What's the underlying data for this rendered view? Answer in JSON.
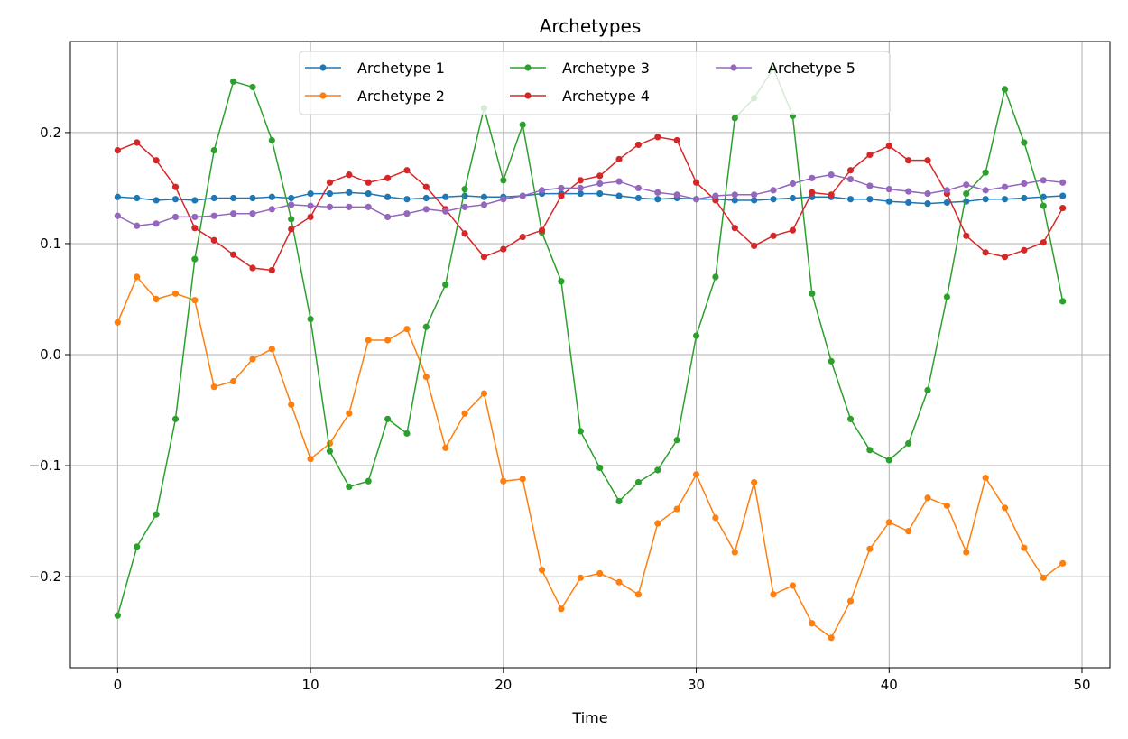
{
  "chart_data": {
    "type": "line",
    "title": "Archetypes",
    "xlabel": "Time",
    "ylabel": "",
    "xlim": [
      -2.45,
      51.45
    ],
    "ylim": [
      -0.282,
      0.282
    ],
    "xticks": [
      0,
      10,
      20,
      30,
      40,
      50
    ],
    "xtick_labels": [
      "0",
      "10",
      "20",
      "30",
      "40",
      "50"
    ],
    "yticks": [
      -0.2,
      -0.1,
      0.0,
      0.1,
      0.2
    ],
    "ytick_labels": [
      "−0.2",
      "−0.1",
      "0.0",
      "0.1",
      "0.2"
    ],
    "grid": true,
    "legend_position": "top-center",
    "legend_columns": 3,
    "x": [
      0,
      1,
      2,
      3,
      4,
      5,
      6,
      7,
      8,
      9,
      10,
      11,
      12,
      13,
      14,
      15,
      16,
      17,
      18,
      19,
      20,
      21,
      22,
      23,
      24,
      25,
      26,
      27,
      28,
      29,
      30,
      31,
      32,
      33,
      34,
      35,
      36,
      37,
      38,
      39,
      40,
      41,
      42,
      43,
      44,
      45,
      46,
      47,
      48,
      49
    ],
    "series": [
      {
        "name": "Archetype 1",
        "color": "#1f77b4",
        "values": [
          0.142,
          0.141,
          0.139,
          0.14,
          0.139,
          0.141,
          0.141,
          0.141,
          0.142,
          0.141,
          0.145,
          0.145,
          0.146,
          0.145,
          0.142,
          0.14,
          0.141,
          0.142,
          0.143,
          0.142,
          0.142,
          0.143,
          0.145,
          0.145,
          0.145,
          0.145,
          0.143,
          0.141,
          0.14,
          0.141,
          0.14,
          0.14,
          0.139,
          0.139,
          0.14,
          0.141,
          0.142,
          0.142,
          0.14,
          0.14,
          0.138,
          0.137,
          0.136,
          0.137,
          0.138,
          0.14,
          0.14,
          0.141,
          0.142,
          0.143
        ]
      },
      {
        "name": "Archetype 2",
        "color": "#ff7f0e",
        "values": [
          0.029,
          0.07,
          0.05,
          0.055,
          0.049,
          -0.029,
          -0.024,
          -0.004,
          0.005,
          -0.045,
          -0.094,
          -0.08,
          -0.053,
          0.013,
          0.013,
          0.023,
          -0.02,
          -0.084,
          -0.053,
          -0.035,
          -0.114,
          -0.112,
          -0.194,
          -0.229,
          -0.201,
          -0.197,
          -0.205,
          -0.216,
          -0.152,
          -0.139,
          -0.108,
          -0.147,
          -0.178,
          -0.115,
          -0.216,
          -0.208,
          -0.242,
          -0.255,
          -0.222,
          -0.175,
          -0.151,
          -0.159,
          -0.129,
          -0.136,
          -0.178,
          -0.111,
          -0.138,
          -0.174,
          -0.201,
          -0.188
        ]
      },
      {
        "name": "Archetype 3",
        "color": "#2ca02c",
        "values": [
          -0.235,
          -0.173,
          -0.144,
          -0.058,
          0.086,
          0.184,
          0.246,
          0.241,
          0.193,
          0.122,
          0.032,
          -0.087,
          -0.119,
          -0.114,
          -0.058,
          -0.071,
          0.025,
          0.063,
          0.149,
          0.222,
          0.157,
          0.207,
          0.11,
          0.066,
          -0.069,
          -0.102,
          -0.132,
          -0.115,
          -0.104,
          -0.077,
          0.017,
          0.07,
          0.213,
          0.231,
          0.258,
          0.215,
          0.055,
          -0.006,
          -0.058,
          -0.086,
          -0.095,
          -0.08,
          -0.032,
          0.052,
          0.145,
          0.164,
          0.239,
          0.191,
          0.134,
          0.048
        ]
      },
      {
        "name": "Archetype 4",
        "color": "#d62728",
        "values": [
          0.184,
          0.191,
          0.175,
          0.151,
          0.114,
          0.103,
          0.09,
          0.078,
          0.076,
          0.113,
          0.124,
          0.155,
          0.162,
          0.155,
          0.159,
          0.166,
          0.151,
          0.131,
          0.109,
          0.088,
          0.095,
          0.106,
          0.112,
          0.143,
          0.157,
          0.161,
          0.176,
          0.189,
          0.196,
          0.193,
          0.155,
          0.139,
          0.114,
          0.098,
          0.107,
          0.112,
          0.146,
          0.144,
          0.166,
          0.18,
          0.188,
          0.175,
          0.175,
          0.145,
          0.107,
          0.092,
          0.088,
          0.094,
          0.101,
          0.132
        ]
      },
      {
        "name": "Archetype 5",
        "color": "#9467bd",
        "values": [
          0.125,
          0.116,
          0.118,
          0.124,
          0.124,
          0.125,
          0.127,
          0.127,
          0.131,
          0.135,
          0.134,
          0.133,
          0.133,
          0.133,
          0.124,
          0.127,
          0.131,
          0.129,
          0.133,
          0.135,
          0.14,
          0.143,
          0.148,
          0.15,
          0.15,
          0.154,
          0.156,
          0.15,
          0.146,
          0.144,
          0.14,
          0.143,
          0.144,
          0.144,
          0.148,
          0.154,
          0.159,
          0.162,
          0.158,
          0.152,
          0.149,
          0.147,
          0.145,
          0.148,
          0.153,
          0.148,
          0.151,
          0.154,
          0.157,
          0.155
        ]
      }
    ]
  }
}
